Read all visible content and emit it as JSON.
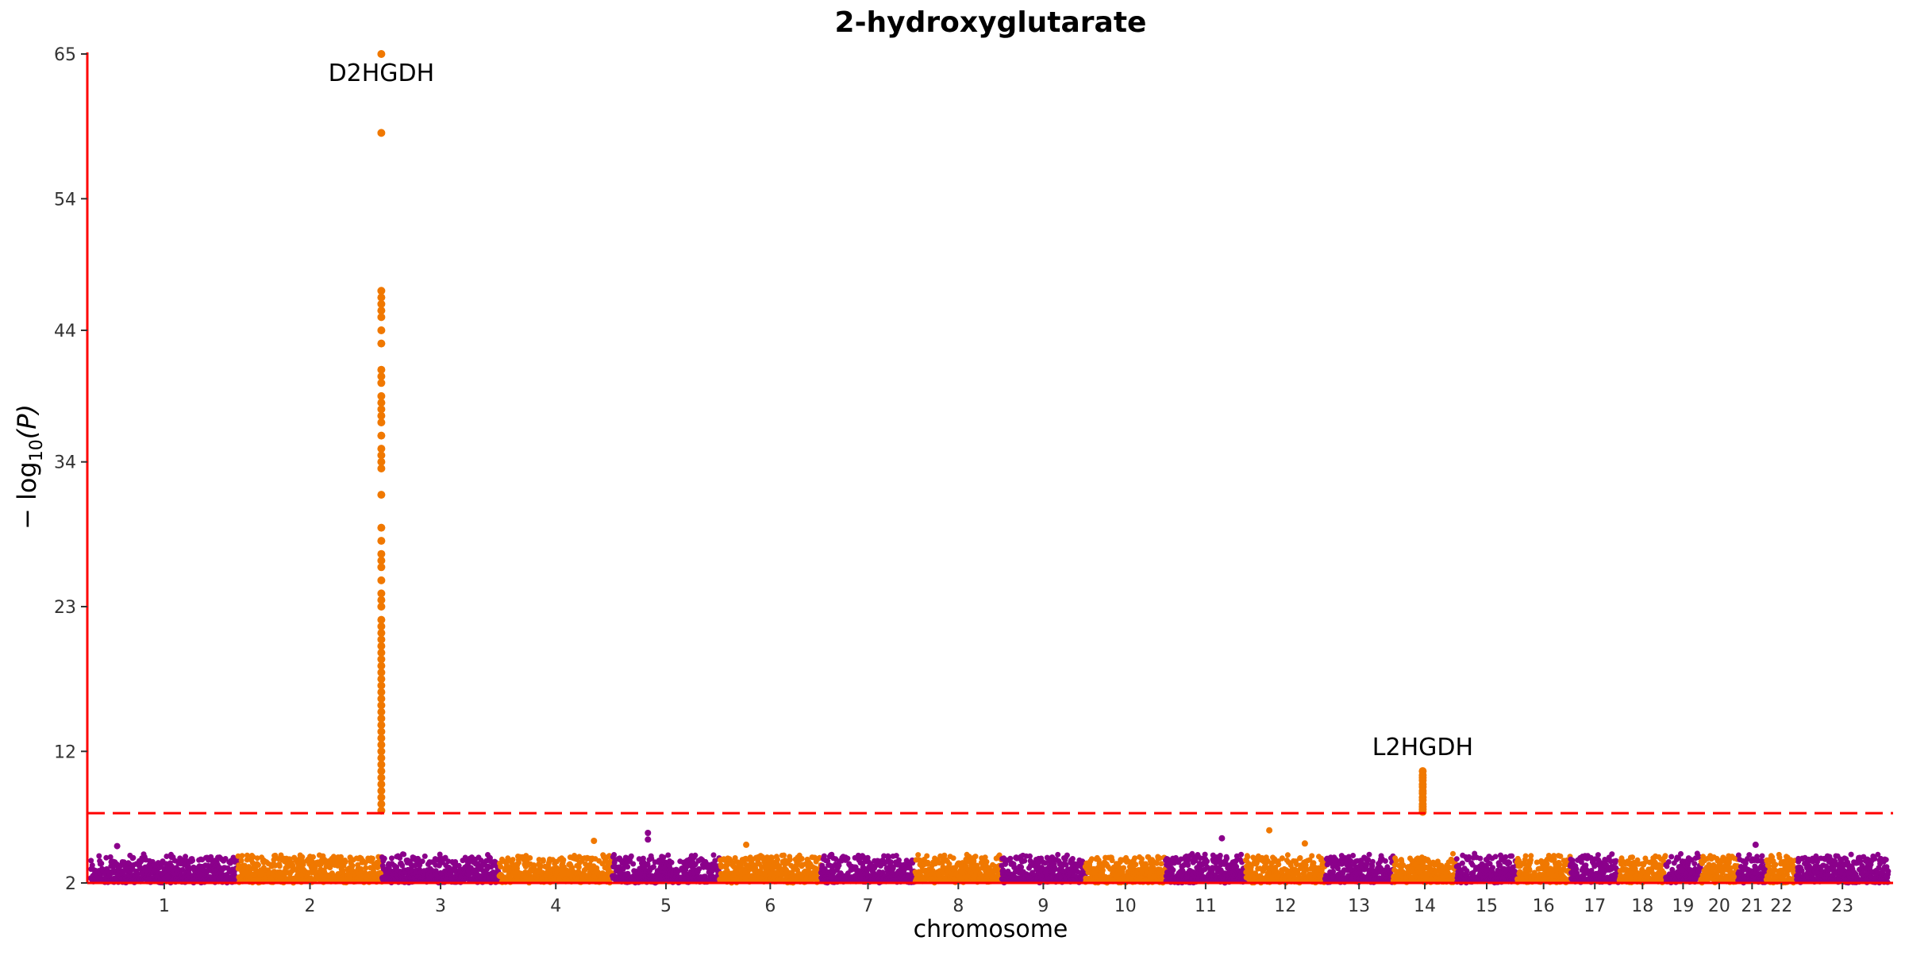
{
  "chart_data": {
    "type": "scatter",
    "title": "2-hydroxyglutarate",
    "xlabel": "chromosome",
    "ylabel_main": "− log",
    "ylabel_sub": "10",
    "ylabel_tail": "(P)",
    "yticks": [
      2,
      12,
      23,
      34,
      44,
      54,
      65
    ],
    "ylim": [
      2,
      65
    ],
    "significance_threshold": 7.3,
    "grid": false,
    "colors": {
      "odd_chromosome": "#8b008b",
      "even_chromosome": "#f07800",
      "axis": "#ff0000",
      "threshold": "#ff0000"
    },
    "chromosomes": [
      {
        "label": "1",
        "length": 249
      },
      {
        "label": "2",
        "length": 243
      },
      {
        "label": "3",
        "length": 198
      },
      {
        "label": "4",
        "length": 191
      },
      {
        "label": "5",
        "length": 181
      },
      {
        "label": "6",
        "length": 171
      },
      {
        "label": "7",
        "length": 159
      },
      {
        "label": "8",
        "length": 146
      },
      {
        "label": "9",
        "length": 141
      },
      {
        "label": "10",
        "length": 136
      },
      {
        "label": "11",
        "length": 135
      },
      {
        "label": "12",
        "length": 134
      },
      {
        "label": "13",
        "length": 115
      },
      {
        "label": "14",
        "length": 107
      },
      {
        "label": "15",
        "length": 102
      },
      {
        "label": "16",
        "length": 90
      },
      {
        "label": "17",
        "length": 83
      },
      {
        "label": "18",
        "length": 78
      },
      {
        "label": "19",
        "length": 59
      },
      {
        "label": "20",
        "length": 63
      },
      {
        "label": "21",
        "length": 48
      },
      {
        "label": "22",
        "length": 51
      },
      {
        "label": "23",
        "length": 155
      }
    ],
    "peaks": [
      {
        "gene": "D2HGDH",
        "chromosome": "2",
        "position": 242,
        "values": [
          65,
          59,
          47,
          46.5,
          46,
          45.5,
          45,
          44,
          43,
          41,
          40.5,
          40,
          39,
          38.5,
          38,
          37.5,
          37,
          36,
          35,
          34.5,
          34,
          33.5,
          31.5,
          29,
          28,
          27,
          26.5,
          26,
          25,
          24,
          23.5,
          23,
          22,
          21.5,
          21,
          20.5,
          20,
          19.5,
          19,
          18.5,
          18,
          17.5,
          17,
          16.5,
          16,
          15.5,
          15,
          14.5,
          14,
          13.5,
          13,
          12.5,
          12,
          11.5,
          11,
          10.5,
          10,
          9.5,
          9,
          8.5,
          8,
          7.5
        ]
      },
      {
        "gene": "L2HGDH",
        "chromosome": "14",
        "position": 50,
        "values": [
          10.5,
          10.2,
          10,
          9.8,
          9.5,
          9.3,
          9,
          8.8,
          8.5,
          8.3,
          8,
          7.8,
          7.6,
          7.4
        ]
      }
    ],
    "suggestive_points": [
      {
        "chromosome": "1",
        "position": 45,
        "value": 4.8
      },
      {
        "chromosome": "4",
        "position": 160,
        "value": 5.2
      },
      {
        "chromosome": "5",
        "position": 60,
        "value": 5.8
      },
      {
        "chromosome": "5",
        "position": 60,
        "value": 5.3
      },
      {
        "chromosome": "6",
        "position": 45,
        "value": 4.9
      },
      {
        "chromosome": "11",
        "position": 95,
        "value": 5.4
      },
      {
        "chromosome": "12",
        "position": 40,
        "value": 6.0
      },
      {
        "chromosome": "12",
        "position": 100,
        "value": 5.0
      },
      {
        "chromosome": "21",
        "position": 30,
        "value": 4.9
      }
    ]
  }
}
